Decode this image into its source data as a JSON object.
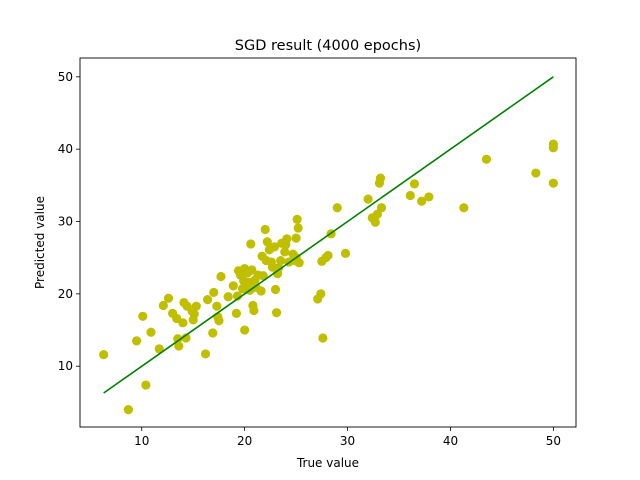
{
  "chart_data": {
    "type": "scatter",
    "title": "SGD result (4000 epochs)",
    "xlabel": "True value",
    "ylabel": "Predicted value",
    "xlim": [
      4.0,
      52.2
    ],
    "ylim": [
      1.6,
      52.6
    ],
    "xticks": [
      10,
      20,
      30,
      40,
      50
    ],
    "yticks": [
      10,
      20,
      30,
      40,
      50
    ],
    "grid": false,
    "legend": "none",
    "colors": {
      "points": "#bfbf00",
      "fit_line": "#008000",
      "axes": "#000000"
    },
    "series": [
      {
        "kind": "scatter",
        "points": [
          [
            6.3,
            11.6
          ],
          [
            8.7,
            4.0
          ],
          [
            9.5,
            13.5
          ],
          [
            10.1,
            16.9
          ],
          [
            10.4,
            7.4
          ],
          [
            10.9,
            14.7
          ],
          [
            11.7,
            12.4
          ],
          [
            12.1,
            18.4
          ],
          [
            12.6,
            19.4
          ],
          [
            13.0,
            17.3
          ],
          [
            13.4,
            16.6
          ],
          [
            13.5,
            13.8
          ],
          [
            13.6,
            12.8
          ],
          [
            14.0,
            16.0
          ],
          [
            14.1,
            18.8
          ],
          [
            14.4,
            18.3
          ],
          [
            14.3,
            13.9
          ],
          [
            14.9,
            17.6
          ],
          [
            15.0,
            16.4
          ],
          [
            15.1,
            17.2
          ],
          [
            15.3,
            18.3
          ],
          [
            16.2,
            11.7
          ],
          [
            16.4,
            19.2
          ],
          [
            16.9,
            14.6
          ],
          [
            17.0,
            20.2
          ],
          [
            17.3,
            18.3
          ],
          [
            17.4,
            16.8
          ],
          [
            17.5,
            16.3
          ],
          [
            17.7,
            22.4
          ],
          [
            18.4,
            19.6
          ],
          [
            18.9,
            21.1
          ],
          [
            19.3,
            19.7
          ],
          [
            19.2,
            17.3
          ],
          [
            19.4,
            23.2
          ],
          [
            19.6,
            22.6
          ],
          [
            19.8,
            20.7
          ],
          [
            19.9,
            21.8
          ],
          [
            20.0,
            23.5
          ],
          [
            20.0,
            15.0
          ],
          [
            20.2,
            21.1
          ],
          [
            20.3,
            22.9
          ],
          [
            20.4,
            21.6
          ],
          [
            20.5,
            20.5
          ],
          [
            20.6,
            26.9
          ],
          [
            20.7,
            23.3
          ],
          [
            20.8,
            18.4
          ],
          [
            20.9,
            17.7
          ],
          [
            21.0,
            21.9
          ],
          [
            21.1,
            20.9
          ],
          [
            21.3,
            22.6
          ],
          [
            21.6,
            20.4
          ],
          [
            21.7,
            25.2
          ],
          [
            21.8,
            22.5
          ],
          [
            22.0,
            28.9
          ],
          [
            22.1,
            24.6
          ],
          [
            22.2,
            27.2
          ],
          [
            22.4,
            26.1
          ],
          [
            22.6,
            24.4
          ],
          [
            22.7,
            23.7
          ],
          [
            22.9,
            26.5
          ],
          [
            23.0,
            20.6
          ],
          [
            23.1,
            17.4
          ],
          [
            23.2,
            22.8
          ],
          [
            23.3,
            23.6
          ],
          [
            23.5,
            24.6
          ],
          [
            23.6,
            27.0
          ],
          [
            23.9,
            25.8
          ],
          [
            24.0,
            26.8
          ],
          [
            24.1,
            27.6
          ],
          [
            24.3,
            24.4
          ],
          [
            24.7,
            25.5
          ],
          [
            24.9,
            24.6
          ],
          [
            25.0,
            25.0
          ],
          [
            25.0,
            27.7
          ],
          [
            25.1,
            30.3
          ],
          [
            25.2,
            29.1
          ],
          [
            25.3,
            24.3
          ],
          [
            27.1,
            19.3
          ],
          [
            27.4,
            20.0
          ],
          [
            27.5,
            24.5
          ],
          [
            27.6,
            13.9
          ],
          [
            27.9,
            25.0
          ],
          [
            28.1,
            25.3
          ],
          [
            28.4,
            28.3
          ],
          [
            29.0,
            31.9
          ],
          [
            29.8,
            25.6
          ],
          [
            32.0,
            33.1
          ],
          [
            32.4,
            30.5
          ],
          [
            32.7,
            29.9
          ],
          [
            32.9,
            31.0
          ],
          [
            33.1,
            35.3
          ],
          [
            33.2,
            36.0
          ],
          [
            33.3,
            31.9
          ],
          [
            36.1,
            33.6
          ],
          [
            36.5,
            35.2
          ],
          [
            37.2,
            32.8
          ],
          [
            37.9,
            33.4
          ],
          [
            41.3,
            31.9
          ],
          [
            43.5,
            38.6
          ],
          [
            48.3,
            36.7
          ],
          [
            50.0,
            40.7
          ],
          [
            50.0,
            40.2
          ],
          [
            50.0,
            35.3
          ]
        ]
      },
      {
        "kind": "line",
        "points": [
          [
            6.3,
            6.3
          ],
          [
            50.0,
            50.0
          ]
        ]
      }
    ]
  }
}
